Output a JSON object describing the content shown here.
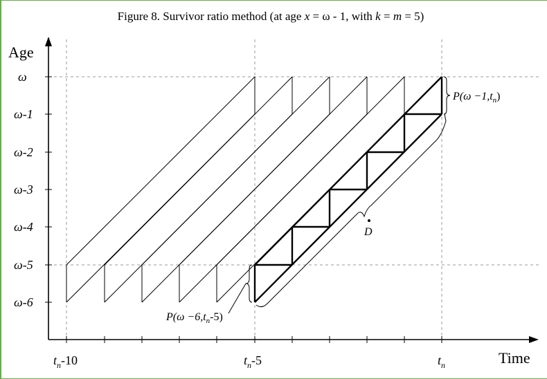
{
  "figure": {
    "title_prefix": "Figure 8.  Survivor ratio method (at age ",
    "title_x": "x",
    "title_eq1": " = ω - 1, with ",
    "title_k": "k",
    "title_eq2": " = ",
    "title_m": "m",
    "title_suffix": " = 5)"
  },
  "axes": {
    "y_name": "Age",
    "x_name": "Time",
    "y_ticks": [
      "ω",
      "ω-1",
      "ω-2",
      "ω-3",
      "ω-4",
      "ω-5",
      "ω-6"
    ],
    "x_ticks": [
      {
        "t": "t",
        "sub": "n",
        "rest": "-10"
      },
      {
        "t": "t",
        "sub": "n",
        "rest": "-5"
      },
      {
        "t": "t",
        "sub": "n",
        "rest": ""
      }
    ]
  },
  "annotations": {
    "p_top": {
      "pre": "P(ω −1,",
      "t": "t",
      "sub": "n",
      "post": ")"
    },
    "p_bottom": {
      "pre": "P(ω −6,",
      "t": "t",
      "sub": "n",
      "post": "-5)"
    },
    "d_label": "D"
  },
  "colors": {
    "line": "#000000",
    "grid": "#999999",
    "frame": "#6aa84f"
  }
}
